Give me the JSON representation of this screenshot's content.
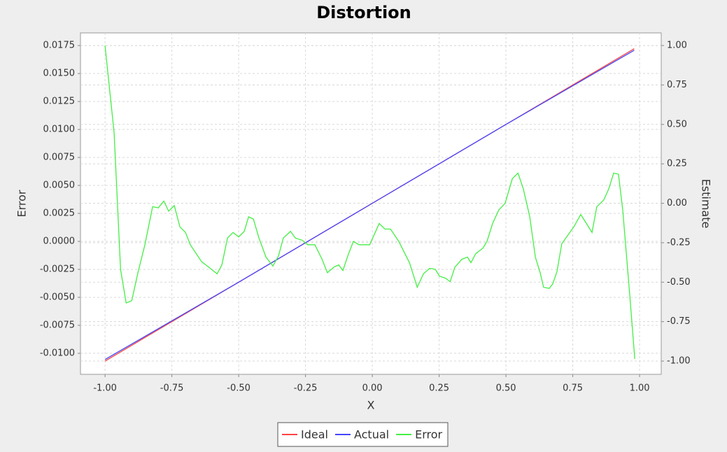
{
  "chart_data": {
    "type": "line",
    "title": "Distortion",
    "xlabel": "X",
    "ylabel": "Error",
    "y2label": "Estimate",
    "xlim": [
      -1.092,
      1.081
    ],
    "ylim": [
      -0.01188,
      0.01863
    ],
    "y2lim": [
      -1.084,
      1.08
    ],
    "xticks": [
      {
        "value": -1,
        "label": "-1.00"
      },
      {
        "value": -0.75,
        "label": "-0.75"
      },
      {
        "value": -0.5,
        "label": "-0.50"
      },
      {
        "value": -0.25,
        "label": "-0.25"
      },
      {
        "value": 0,
        "label": "0.00"
      },
      {
        "value": 0.25,
        "label": "0.25"
      },
      {
        "value": 0.5,
        "label": "0.50"
      },
      {
        "value": 0.75,
        "label": "0.75"
      },
      {
        "value": 1,
        "label": "1.00"
      }
    ],
    "yticks": [
      {
        "value": -0.01,
        "label": "-0.0100"
      },
      {
        "value": -0.0075,
        "label": "-0.0075"
      },
      {
        "value": -0.005,
        "label": "-0.0050"
      },
      {
        "value": -0.0025,
        "label": "-0.0025"
      },
      {
        "value": 0,
        "label": "0.0000"
      },
      {
        "value": 0.0025,
        "label": "0.0025"
      },
      {
        "value": 0.005,
        "label": "0.0050"
      },
      {
        "value": 0.0075,
        "label": "0.0075"
      },
      {
        "value": 0.01,
        "label": "0.0100"
      },
      {
        "value": 0.0125,
        "label": "0.0125"
      },
      {
        "value": 0.015,
        "label": "0.0150"
      },
      {
        "value": 0.0175,
        "label": "0.0175"
      }
    ],
    "y2ticks": [
      {
        "value": -1,
        "label": "-1.00"
      },
      {
        "value": -0.75,
        "label": "-0.75"
      },
      {
        "value": -0.5,
        "label": "-0.50"
      },
      {
        "value": -0.25,
        "label": "-0.25"
      },
      {
        "value": 0,
        "label": "0.00"
      },
      {
        "value": 0.25,
        "label": "0.25"
      },
      {
        "value": 0.5,
        "label": "0.50"
      },
      {
        "value": 0.75,
        "label": "0.75"
      },
      {
        "value": 1,
        "label": "1.00"
      }
    ],
    "grid": true,
    "legend": "bottom",
    "series": [
      {
        "name": "Ideal",
        "color": "#ff4444",
        "axis": "y2",
        "x": [
          -1,
          0.98
        ],
        "values": [
          -1,
          0.98
        ]
      },
      {
        "name": "Actual",
        "color": "#4444ff",
        "axis": "y2",
        "x": [
          -1,
          -0.5,
          0,
          0.5,
          0.98
        ],
        "values": [
          -0.99,
          -0.5,
          0.0,
          0.5,
          0.97
        ]
      },
      {
        "name": "Error",
        "color": "#44ee44",
        "axis": "y",
        "x": [
          -1,
          -0.966,
          -0.942,
          -0.921,
          -0.9,
          -0.877,
          -0.851,
          -0.822,
          -0.801,
          -0.78,
          -0.762,
          -0.741,
          -0.72,
          -0.699,
          -0.681,
          -0.639,
          -0.607,
          -0.581,
          -0.563,
          -0.542,
          -0.521,
          -0.5,
          -0.479,
          -0.463,
          -0.445,
          -0.424,
          -0.398,
          -0.372,
          -0.351,
          -0.333,
          -0.306,
          -0.288,
          -0.262,
          -0.241,
          -0.215,
          -0.188,
          -0.168,
          -0.144,
          -0.126,
          -0.11,
          -0.092,
          -0.071,
          -0.05,
          -0.01,
          0.026,
          0.047,
          0.068,
          0.099,
          0.139,
          0.168,
          0.191,
          0.215,
          0.236,
          0.251,
          0.275,
          0.291,
          0.309,
          0.335,
          0.356,
          0.369,
          0.387,
          0.414,
          0.429,
          0.45,
          0.473,
          0.497,
          0.524,
          0.545,
          0.565,
          0.589,
          0.61,
          0.628,
          0.641,
          0.662,
          0.675,
          0.691,
          0.709,
          0.733,
          0.754,
          0.78,
          0.801,
          0.822,
          0.84,
          0.866,
          0.885,
          0.903,
          0.921,
          0.937,
          0.963,
          0.982
        ],
        "values": [
          0.0175,
          0.0097,
          -0.0025,
          -0.0055,
          -0.0053,
          -0.0028,
          -0.0003,
          0.0031,
          0.003,
          0.0036,
          0.0027,
          0.0032,
          0.0013,
          0.0008,
          -0.0003,
          -0.0018,
          -0.0024,
          -0.0029,
          -0.0021,
          0.0003,
          0.0008,
          0.0004,
          0.0009,
          0.0022,
          0.002,
          0.0003,
          -0.0014,
          -0.0022,
          -0.0013,
          0.0003,
          0.0009,
          0.0003,
          0.0001,
          -0.0003,
          -0.0003,
          -0.0016,
          -0.0028,
          -0.0023,
          -0.0021,
          -0.0026,
          -0.0013,
          0,
          -0.0003,
          -0.0003,
          0.0016,
          0.0011,
          0.0011,
          0,
          -0.0019,
          -0.0041,
          -0.0029,
          -0.0024,
          -0.0025,
          -0.0031,
          -0.0033,
          -0.0036,
          -0.0023,
          -0.0016,
          -0.0014,
          -0.0019,
          -0.0011,
          -0.0006,
          0,
          0.0016,
          0.0028,
          0.0034,
          0.0056,
          0.0061,
          0.0047,
          0.0022,
          -0.0014,
          -0.0028,
          -0.0041,
          -0.0042,
          -0.0038,
          -0.0027,
          -0.0002,
          0.0006,
          0.0013,
          0.0024,
          0.0016,
          0.0008,
          0.0031,
          0.0037,
          0.0047,
          0.0061,
          0.006,
          0.0028,
          -0.0047,
          -0.0105
        ]
      }
    ]
  }
}
